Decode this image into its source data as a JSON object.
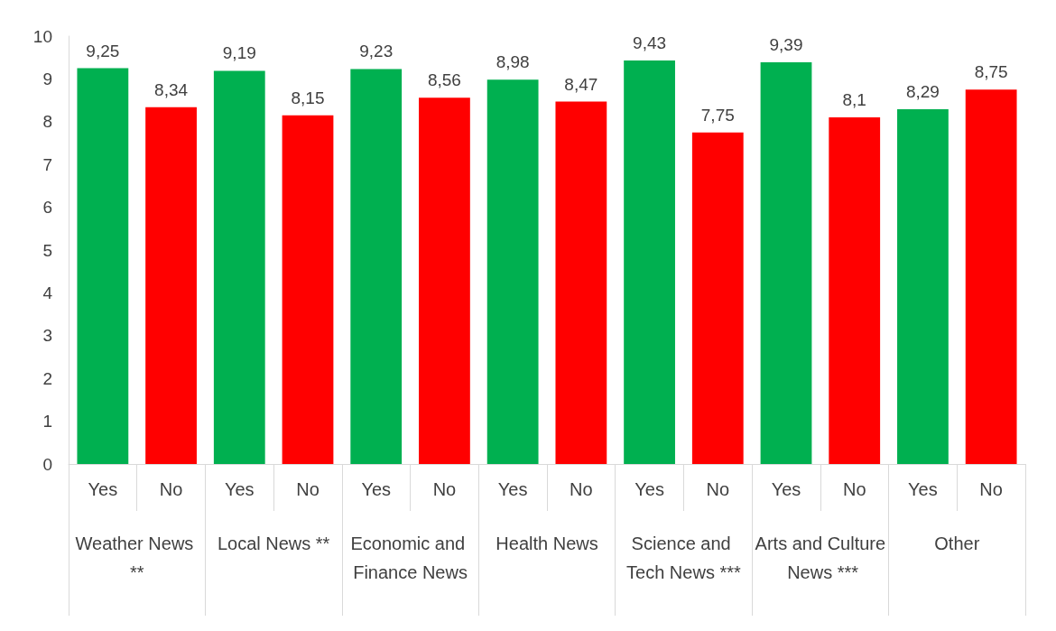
{
  "chart_data": {
    "type": "bar",
    "categories": [
      "Weather News **",
      "Local News **",
      "Economic and Finance News",
      "Health News",
      "Science and Tech News ***",
      "Arts and Culture News ***",
      "Other"
    ],
    "series": [
      {
        "name": "Yes",
        "color": "#00b050",
        "values": [
          9.25,
          9.19,
          9.23,
          8.98,
          9.43,
          9.39,
          8.29
        ],
        "value_labels": [
          "9,25",
          "9,19",
          "9,23",
          "8,98",
          "9,43",
          "9,39",
          "8,29"
        ]
      },
      {
        "name": "No",
        "color": "#ff0000",
        "values": [
          8.34,
          8.15,
          8.56,
          8.47,
          7.75,
          8.1,
          8.75
        ],
        "value_labels": [
          "8,34",
          "8,15",
          "8,56",
          "8,47",
          "7,75",
          "8,1",
          "8,75"
        ]
      }
    ],
    "ylim": [
      0,
      10
    ],
    "yticks": [
      0,
      1,
      2,
      3,
      4,
      5,
      6,
      7,
      8,
      9,
      10
    ],
    "grid": false
  }
}
